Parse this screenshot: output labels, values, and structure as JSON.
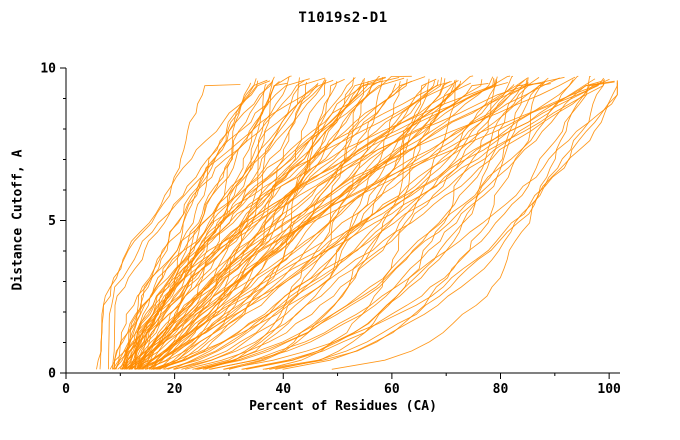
{
  "title": "T1019s2-D1",
  "chart_data": {
    "type": "line",
    "title": "T1019s2-D1",
    "xlabel": "Percent of Residues (CA)",
    "ylabel": "Distance Cutoff, A",
    "xlim": [
      0,
      102
    ],
    "ylim": [
      0,
      10
    ],
    "x_ticks": {
      "major": [
        0,
        20,
        40,
        60,
        80,
        100
      ],
      "minor": [
        10,
        30,
        50,
        70,
        90
      ]
    },
    "y_ticks": {
      "major": [
        0,
        5,
        10
      ],
      "minor": [
        1,
        2,
        3,
        4,
        6,
        7,
        8,
        9
      ]
    },
    "grid": false,
    "legend": null,
    "line_color": "#ff8c00",
    "background": "#ffffff",
    "text_color": "#000000",
    "curve_count": 105,
    "series_representation": "GDT-style cumulative curves, one per model; each entry is [quality 0-1, shape exponent g]; x(y) = x_bottom + (x_top - x_bottom) * (y / y_top)^g, with x_bottom ~ 5 + 9*quality and x_top ~ 28 + 74*quality percent; y runs 0.12 to ~9.6 Angstrom cutoff",
    "curves": [
      [
        0.05,
        0.8
      ],
      [
        0.1,
        1.2
      ],
      [
        0.02,
        0.5
      ],
      [
        0.15,
        0.9
      ],
      [
        0.08,
        1.5
      ],
      [
        0.2,
        0.35
      ],
      [
        0.12,
        0.7
      ],
      [
        0.25,
        1.1
      ],
      [
        0.18,
        1.8
      ],
      [
        0.3,
        0.45
      ],
      [
        0.22,
        0.95
      ],
      [
        0.35,
        0.25
      ],
      [
        0.28,
        1.4
      ],
      [
        0.4,
        0.6
      ],
      [
        0.32,
        1.0
      ],
      [
        0.45,
        0.3
      ],
      [
        0.38,
        1.7
      ],
      [
        0.5,
        0.5
      ],
      [
        0.42,
        1.2
      ],
      [
        0.55,
        0.2
      ],
      [
        0.48,
        0.85
      ],
      [
        0.6,
        1.5
      ],
      [
        0.52,
        0.4
      ],
      [
        0.65,
        0.9
      ],
      [
        0.58,
        2.0
      ],
      [
        0.7,
        0.3
      ],
      [
        0.62,
        1.1
      ],
      [
        0.75,
        0.55
      ],
      [
        0.68,
        1.6
      ],
      [
        0.8,
        0.25
      ],
      [
        0.72,
        0.95
      ],
      [
        0.85,
        1.3
      ],
      [
        0.78,
        0.45
      ],
      [
        0.9,
        0.8
      ],
      [
        0.82,
        1.9
      ],
      [
        0.95,
        0.35
      ],
      [
        0.88,
        1.05
      ],
      [
        1.0,
        0.6
      ],
      [
        0.92,
        1.45
      ],
      [
        0.98,
        0.22
      ],
      [
        0.03,
        1.0
      ],
      [
        0.13,
        0.55
      ],
      [
        0.23,
        1.25
      ],
      [
        0.33,
        0.75
      ],
      [
        0.43,
        1.55
      ],
      [
        0.53,
        0.28
      ],
      [
        0.63,
        0.98
      ],
      [
        0.73,
        1.35
      ],
      [
        0.83,
        0.5
      ],
      [
        0.93,
        1.15
      ],
      [
        0.07,
        0.65
      ],
      [
        0.17,
        1.45
      ],
      [
        0.27,
        0.38
      ],
      [
        0.37,
        1.05
      ],
      [
        0.47,
        1.75
      ],
      [
        0.57,
        0.48
      ],
      [
        0.67,
        1.2
      ],
      [
        0.77,
        0.32
      ],
      [
        0.87,
        0.88
      ],
      [
        0.97,
        1.6
      ],
      [
        0.04,
        1.3
      ],
      [
        0.14,
        0.42
      ],
      [
        0.24,
        0.92
      ],
      [
        0.34,
        1.65
      ],
      [
        0.44,
        0.26
      ],
      [
        0.54,
        1.08
      ],
      [
        0.64,
        0.58
      ],
      [
        0.74,
        1.5
      ],
      [
        0.84,
        0.36
      ],
      [
        0.94,
        0.78
      ],
      [
        0.06,
        0.52
      ],
      [
        0.16,
        1.15
      ],
      [
        0.26,
        1.85
      ],
      [
        0.36,
        0.48
      ],
      [
        0.46,
        0.95
      ],
      [
        0.56,
        1.4
      ],
      [
        0.66,
        0.24
      ],
      [
        0.76,
        0.82
      ],
      [
        0.86,
        1.55
      ],
      [
        0.96,
        0.44
      ],
      [
        0.09,
        1.7
      ],
      [
        0.19,
        0.62
      ],
      [
        0.29,
        1.02
      ],
      [
        0.39,
        0.33
      ],
      [
        0.49,
        1.3
      ],
      [
        0.59,
        0.72
      ],
      [
        0.69,
        1.9
      ],
      [
        0.79,
        0.4
      ],
      [
        0.89,
        1.1
      ],
      [
        0.99,
        0.55
      ],
      [
        0.11,
        0.85
      ],
      [
        0.21,
        1.5
      ],
      [
        0.31,
        0.58
      ],
      [
        0.41,
        1.18
      ],
      [
        0.51,
        0.85
      ],
      [
        0.61,
        0.42
      ],
      [
        0.71,
        1.65
      ],
      [
        0.81,
        0.95
      ],
      [
        0.91,
        0.3
      ],
      [
        0.5,
        1.0
      ],
      [
        0.35,
        0.7
      ],
      [
        0.45,
        1.35
      ],
      [
        0.55,
        0.6
      ],
      [
        0.65,
        2.1
      ],
      [
        0.75,
        1.25
      ]
    ]
  }
}
